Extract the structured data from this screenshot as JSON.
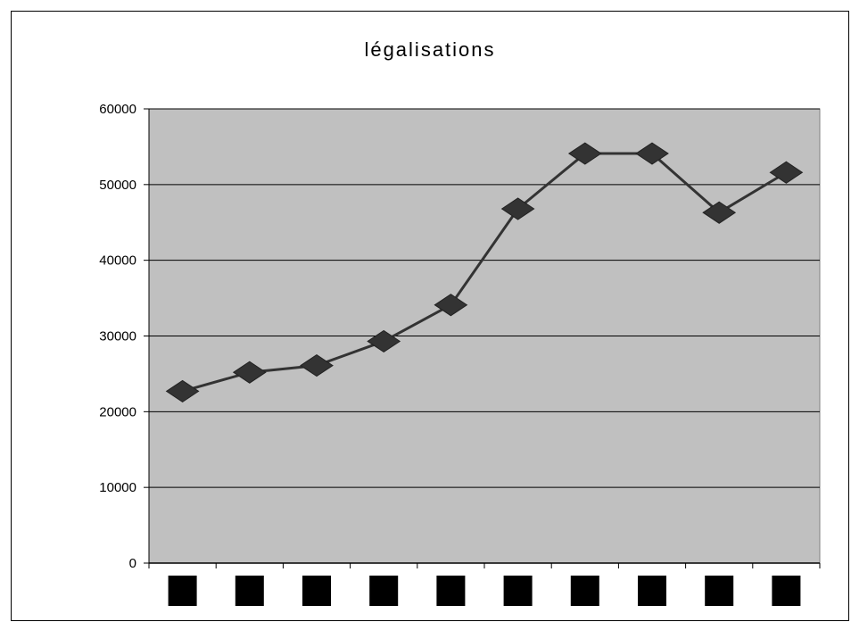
{
  "chart_data": {
    "type": "line",
    "title": "légalisations",
    "xlabel": "",
    "ylabel": "",
    "x_tick_labels_obscured": true,
    "categories": [
      "",
      "",
      "",
      "",
      "",
      "",
      "",
      "",
      "",
      ""
    ],
    "series": [
      {
        "values": [
          22700,
          25200,
          26100,
          29300,
          34100,
          46800,
          54100,
          54100,
          46300,
          51600
        ]
      }
    ],
    "ylim": [
      0,
      60000
    ],
    "yticks": [
      0,
      10000,
      20000,
      30000,
      40000,
      50000,
      60000
    ],
    "grid": true,
    "legend": "none",
    "colors": {
      "plot_background": "#c0c0c0",
      "line": "#333333",
      "marker": "#333333",
      "gridline": "#000000",
      "x_label_block": "#000000"
    }
  }
}
